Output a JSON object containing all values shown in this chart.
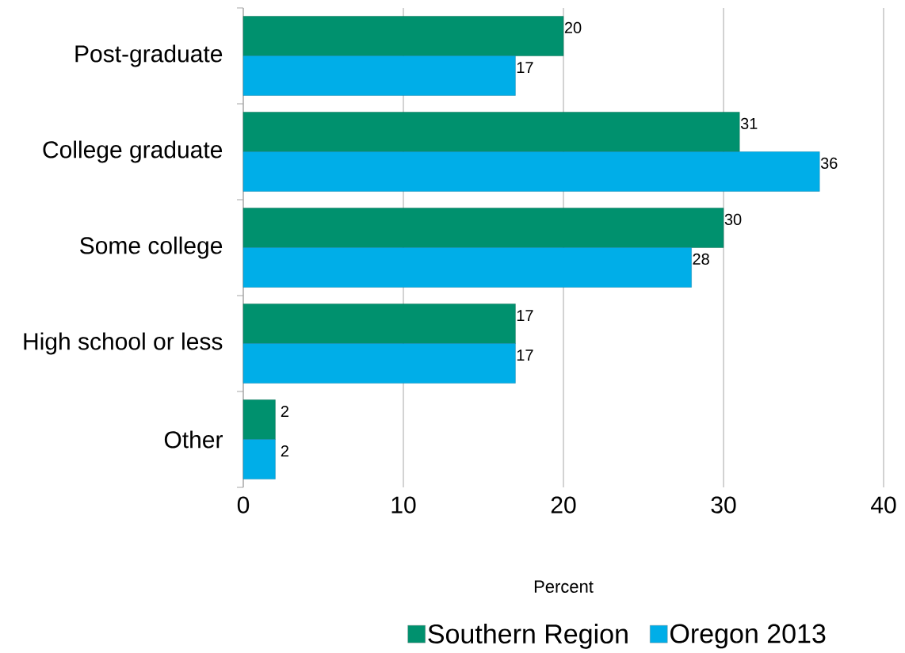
{
  "chart_data": {
    "type": "bar",
    "orientation": "horizontal",
    "xlabel": "Percent",
    "categories": [
      "Post-graduate",
      "College graduate",
      "Some college",
      "High school or less",
      "Other"
    ],
    "series": [
      {
        "name": "Southern Region",
        "color": "#00916e",
        "values": [
          20,
          31,
          30,
          17,
          2
        ]
      },
      {
        "name": "Oregon 2013",
        "color": "#00aee8",
        "values": [
          17,
          36,
          28,
          17,
          2
        ]
      }
    ],
    "xlim": [
      0,
      40
    ],
    "xticks": [
      0,
      10,
      20,
      30,
      40
    ],
    "grid": "x",
    "legend": "bottom",
    "data_labels": true
  }
}
